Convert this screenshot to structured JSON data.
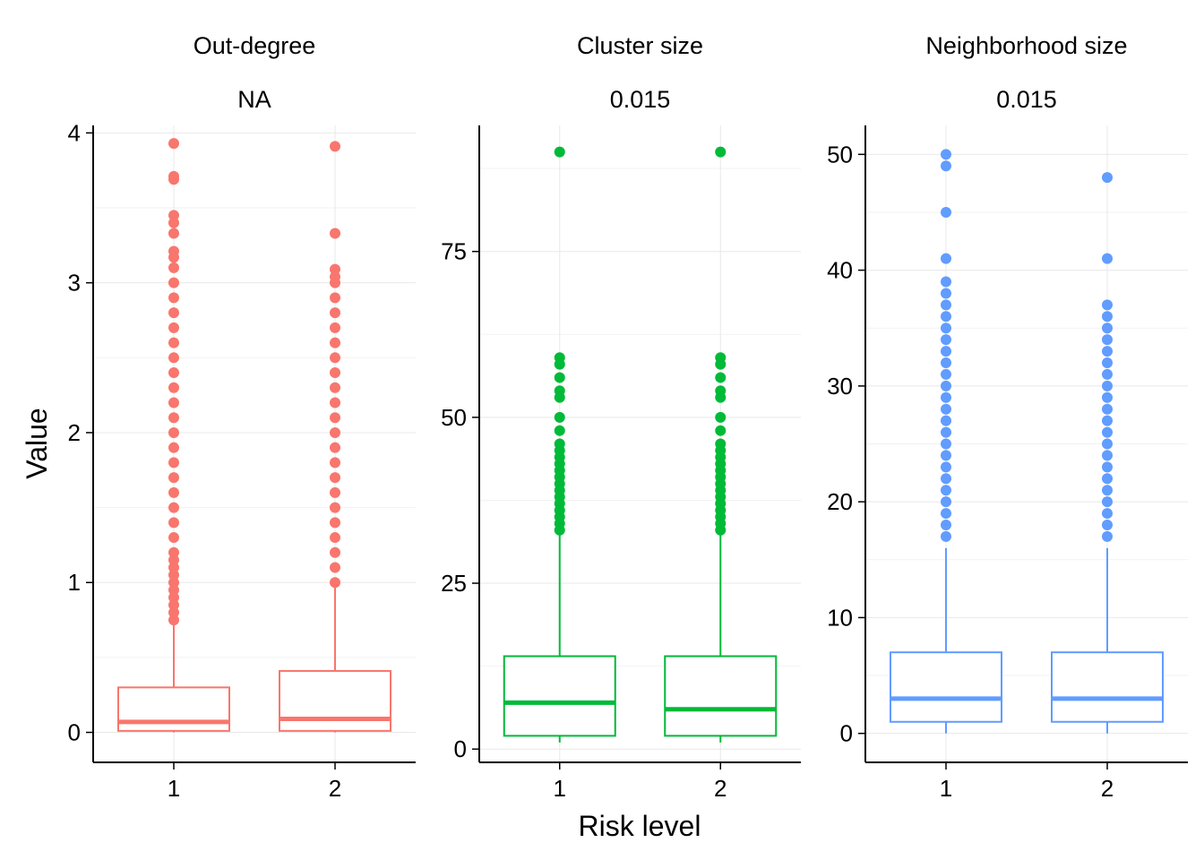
{
  "chart_data": {
    "type": "box",
    "xlabel": "Risk level",
    "ylabel": "Value",
    "grid": true,
    "legend": "none",
    "panels": [
      {
        "title": "Out-degree",
        "subtitle": "NA",
        "color": "#F8766D",
        "ylim": [
          -0.2,
          4.05
        ],
        "yticks": [
          0,
          1,
          2,
          3,
          4
        ],
        "categories": [
          "1",
          "2"
        ],
        "boxes": [
          {
            "category": "1",
            "min": 0.0,
            "q1": 0.01,
            "median": 0.07,
            "q3": 0.3,
            "whisker_high": 0.74,
            "outliers": [
              0.75,
              0.8,
              0.85,
              0.9,
              0.95,
              1.0,
              1.05,
              1.1,
              1.15,
              1.2,
              1.3,
              1.4,
              1.5,
              1.6,
              1.7,
              1.8,
              1.9,
              2.0,
              2.1,
              2.2,
              2.3,
              2.4,
              2.5,
              2.6,
              2.7,
              2.8,
              2.9,
              3.0,
              3.1,
              3.17,
              3.21,
              3.33,
              3.4,
              3.45,
              3.69,
              3.71,
              3.93
            ]
          },
          {
            "category": "2",
            "min": 0.0,
            "q1": 0.01,
            "median": 0.09,
            "q3": 0.41,
            "whisker_high": 0.99,
            "outliers": [
              1.0,
              1.1,
              1.2,
              1.3,
              1.4,
              1.5,
              1.6,
              1.7,
              1.8,
              1.9,
              2.0,
              2.1,
              2.2,
              2.3,
              2.4,
              2.5,
              2.6,
              2.7,
              2.8,
              2.9,
              3.0,
              3.04,
              3.09,
              3.33,
              3.91
            ]
          }
        ]
      },
      {
        "title": "Cluster size",
        "subtitle": "0.015",
        "color": "#00BA38",
        "ylim": [
          -2,
          94
        ],
        "yticks": [
          0,
          25,
          50,
          75
        ],
        "categories": [
          "1",
          "2"
        ],
        "boxes": [
          {
            "category": "1",
            "min": 1,
            "q1": 2,
            "median": 7,
            "q3": 14,
            "whisker_high": 33,
            "outliers": [
              33,
              34,
              35,
              36,
              37,
              38,
              39,
              40,
              41,
              42,
              43,
              44,
              45,
              46,
              48,
              50,
              53,
              54,
              56,
              58,
              59,
              90
            ]
          },
          {
            "category": "2",
            "min": 1,
            "q1": 2,
            "median": 6,
            "q3": 14,
            "whisker_high": 33,
            "outliers": [
              33,
              34,
              35,
              36,
              37,
              38,
              39,
              40,
              41,
              42,
              43,
              44,
              45,
              46,
              48,
              50,
              53,
              54,
              56,
              58,
              59,
              90
            ]
          }
        ]
      },
      {
        "title": "Neighborhood size",
        "subtitle": "0.015",
        "color": "#619CFF",
        "ylim": [
          -2.5,
          52.5
        ],
        "yticks": [
          0,
          10,
          20,
          30,
          40,
          50
        ],
        "categories": [
          "1",
          "2"
        ],
        "boxes": [
          {
            "category": "1",
            "min": 0,
            "q1": 1,
            "median": 3,
            "q3": 7,
            "whisker_high": 16,
            "outliers": [
              17,
              18,
              19,
              20,
              21,
              22,
              23,
              24,
              25,
              26,
              27,
              28,
              29,
              30,
              31,
              32,
              33,
              34,
              35,
              36,
              37,
              38,
              39,
              41,
              45,
              49,
              50
            ]
          },
          {
            "category": "2",
            "min": 0,
            "q1": 1,
            "median": 3,
            "q3": 7,
            "whisker_high": 16,
            "outliers": [
              17,
              18,
              19,
              20,
              21,
              22,
              23,
              24,
              25,
              26,
              27,
              28,
              29,
              30,
              31,
              32,
              33,
              34,
              35,
              36,
              37,
              41,
              48
            ]
          }
        ]
      }
    ]
  }
}
